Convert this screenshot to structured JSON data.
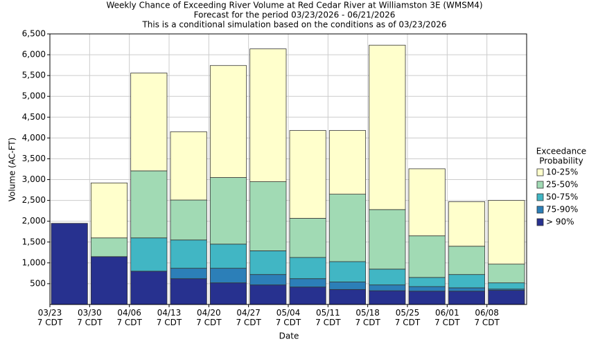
{
  "chart_data": {
    "type": "stacked-bar",
    "title": "Weekly Chance of Exceeding River Volume at Red Cedar River at Williamston 3E (WMSM4)",
    "subtitle": "Forecast for the period 03/23/2026 - 06/21/2026",
    "note": "This is a conditional simulation based on the conditions as of 03/23/2026",
    "x_label": "Date",
    "y_label": "Volume (AC-FT)",
    "legend_title": [
      "Exceedance",
      "Probability"
    ],
    "legend_position": "right",
    "grid": true,
    "categories": [
      [
        "03/23",
        "7 CDT"
      ],
      [
        "03/30",
        "7 CDT"
      ],
      [
        "04/06",
        "7 CDT"
      ],
      [
        "04/13",
        "7 CDT"
      ],
      [
        "04/20",
        "7 CDT"
      ],
      [
        "04/27",
        "7 CDT"
      ],
      [
        "05/04",
        "7 CDT"
      ],
      [
        "05/11",
        "7 CDT"
      ],
      [
        "05/18",
        "7 CDT"
      ],
      [
        "05/25",
        "7 CDT"
      ],
      [
        "06/01",
        "7 CDT"
      ],
      [
        "06/08",
        "7 CDT"
      ]
    ],
    "series": [
      {
        "name": "> 90%",
        "color": "#27318f",
        "values": [
          1950,
          1150,
          800,
          620,
          520,
          470,
          420,
          360,
          330,
          320,
          320,
          340
        ]
      },
      {
        "name": "75-90%",
        "color": "#2c7fb8",
        "values": [
          0,
          0,
          0,
          250,
          350,
          250,
          200,
          180,
          140,
          110,
          80,
          30
        ]
      },
      {
        "name": "50-75%",
        "color": "#41b6c4",
        "values": [
          0,
          0,
          800,
          680,
          580,
          570,
          510,
          490,
          380,
          220,
          320,
          150
        ]
      },
      {
        "name": "25-50%",
        "color": "#a1dab4",
        "values": [
          0,
          450,
          1610,
          960,
          1600,
          1660,
          940,
          1620,
          1430,
          1000,
          680,
          450
        ]
      },
      {
        "name": "10-25%",
        "color": "#ffffcc",
        "values": [
          0,
          1320,
          2350,
          1640,
          2690,
          3190,
          2110,
          1530,
          3950,
          1610,
          1070,
          1530
        ]
      }
    ],
    "ylim": [
      0,
      6500
    ],
    "yticks": [
      500,
      {
        "value": 1000,
        "label": "1,000"
      },
      {
        "value": 1500,
        "label": "1,500"
      },
      {
        "value": 2000,
        "label": "2,000"
      },
      {
        "value": 2500,
        "label": "2,500"
      },
      {
        "value": 3000,
        "label": "3,000"
      },
      {
        "value": 3500,
        "label": "3,500"
      },
      {
        "value": 4000,
        "label": "4,000"
      },
      {
        "value": 4500,
        "label": "4,500"
      },
      {
        "value": 5000,
        "label": "5,000"
      },
      {
        "value": 5500,
        "label": "5,500"
      },
      {
        "value": 6000,
        "label": "6,000"
      },
      {
        "value": 6500,
        "label": "6,500"
      }
    ]
  }
}
